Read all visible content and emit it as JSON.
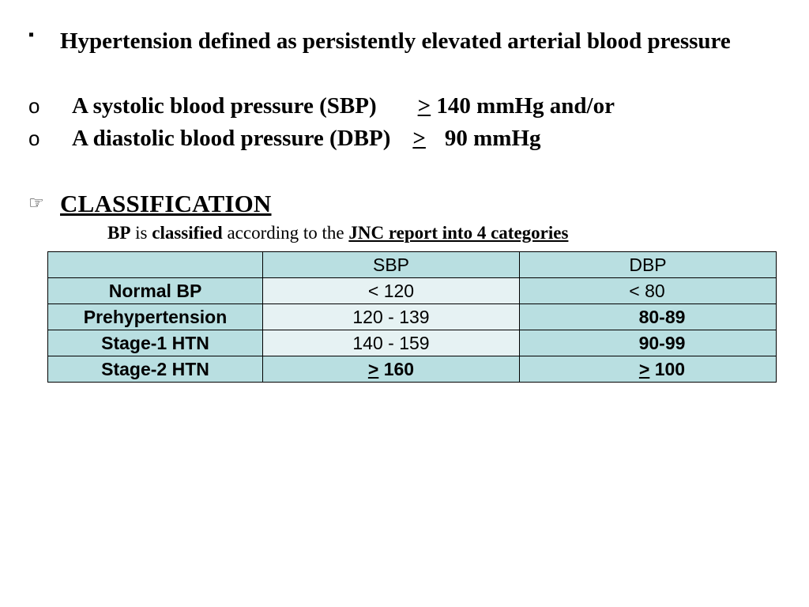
{
  "definition": {
    "bullet_marker": "▪",
    "text": "Hypertension defined as persistently elevated arterial blood pressure",
    "sub_marker": "o",
    "systolic": {
      "prefix": "A systolic blood pressure (SBP)",
      "symbol": ">",
      "value": "140 mmHg and/or"
    },
    "diastolic": {
      "prefix": "A diastolic blood pressure (DBP)",
      "symbol": ">",
      "value": "90 mmHg"
    }
  },
  "classification": {
    "icon": "pointing-hand-icon",
    "heading": "CLASSIFICATION",
    "subline": {
      "bp": "BP",
      "is": "is",
      "classified": "classified",
      "according": "according to the",
      "jnc": "JNC report into 4 categories"
    }
  },
  "table": {
    "header": [
      "",
      "SBP",
      "DBP"
    ],
    "rows": [
      {
        "category": "Normal BP",
        "sbp": "< 120",
        "dbp": "< 80"
      },
      {
        "category": "Prehypertension",
        "sbp": "120 - 139",
        "dbp": "80-89"
      },
      {
        "category": "Stage-1 HTN",
        "sbp": "140 - 159",
        "dbp": "90-99"
      },
      {
        "category": "Stage-2 HTN",
        "sbp_symbol": ">",
        "sbp": "160",
        "dbp_symbol": ">",
        "dbp": "100"
      }
    ]
  },
  "colors": {
    "teal_cell": "#b9dfe1",
    "light_cell": "#e6f2f3"
  }
}
